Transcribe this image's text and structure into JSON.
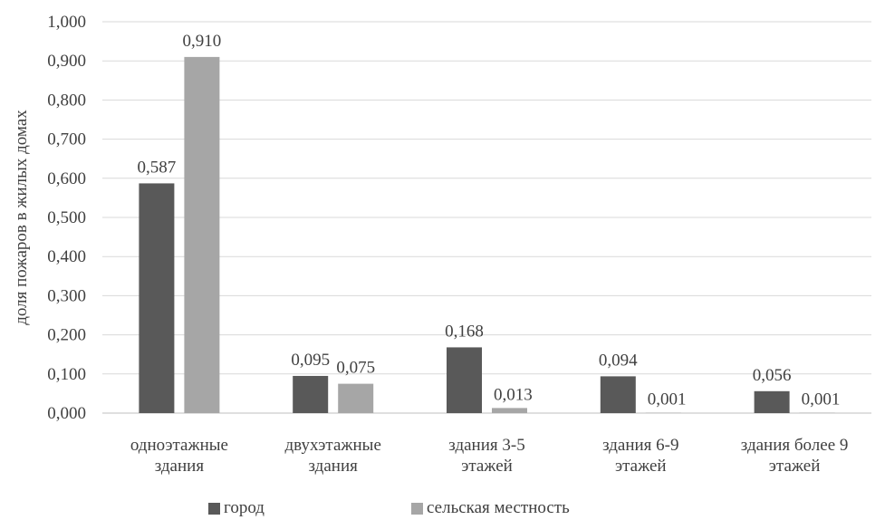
{
  "chart_data": {
    "type": "bar",
    "ylabel": "доля пожаров в  жилых домах",
    "ylim": [
      0,
      1.0
    ],
    "yticks": [
      "0,000",
      "0,100",
      "0,200",
      "0,300",
      "0,400",
      "0,500",
      "0,600",
      "0,700",
      "0,800",
      "0,900",
      "1,000"
    ],
    "categories": [
      [
        "одноэтажные",
        "здания"
      ],
      [
        "двухэтажные",
        "здания"
      ],
      [
        "здания 3-5",
        "этажей"
      ],
      [
        "здания 6-9",
        "этажей"
      ],
      [
        "здания более 9",
        "этажей"
      ]
    ],
    "series": [
      {
        "name": "город",
        "color": "#595959",
        "values": [
          0.587,
          0.095,
          0.168,
          0.094,
          0.056
        ],
        "labels": [
          "0,587",
          "0,095",
          "0,168",
          "0,094",
          "0,056"
        ]
      },
      {
        "name": "сельская местность",
        "color": "#a6a6a6",
        "values": [
          0.91,
          0.075,
          0.013,
          0.001,
          0.001
        ],
        "labels": [
          "0,910",
          "0,075",
          "0,013",
          "0,001",
          "0,001"
        ]
      }
    ],
    "grid": true,
    "legend_position": "bottom"
  }
}
